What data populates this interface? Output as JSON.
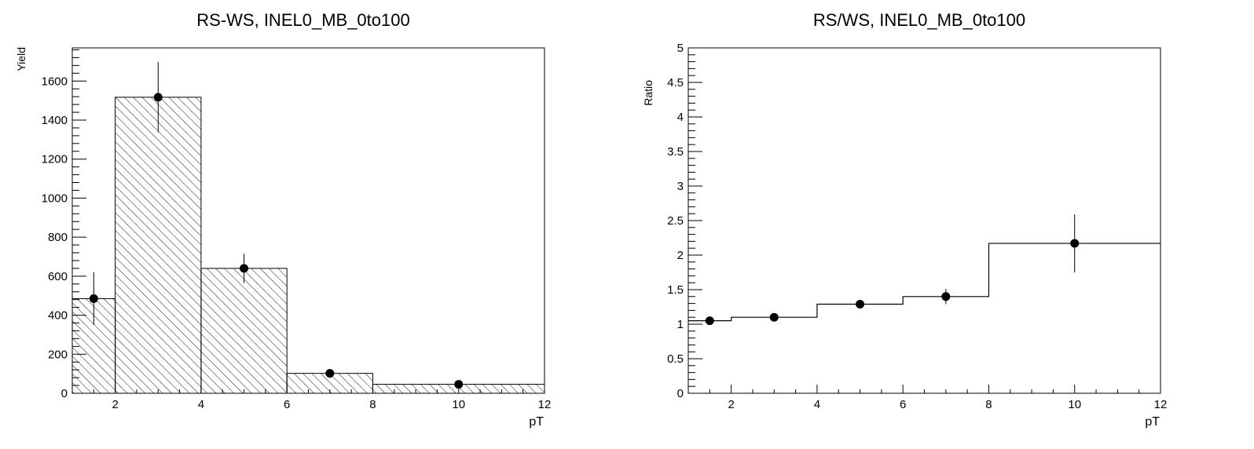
{
  "chart_data": [
    {
      "type": "bar",
      "title": "RS-WS, INEL0_MB_0to100",
      "xlabel": "pT",
      "ylabel": "Yield",
      "xlim": [
        1,
        12
      ],
      "ylim": [
        0,
        1770
      ],
      "x_ticks": [
        2,
        4,
        6,
        8,
        10,
        12
      ],
      "y_ticks": [
        0,
        200,
        400,
        600,
        800,
        1000,
        1200,
        1400,
        1600
      ],
      "bin_edges": [
        1,
        2,
        4,
        6,
        8,
        12
      ],
      "histogram_fill": "hatched",
      "points": [
        {
          "x": 1.5,
          "y": 485,
          "yerr": 135
        },
        {
          "x": 3,
          "y": 1517,
          "yerr": 180
        },
        {
          "x": 5,
          "y": 640,
          "yerr": 75
        },
        {
          "x": 7,
          "y": 102,
          "yerr": 12
        },
        {
          "x": 10,
          "y": 46,
          "yerr": 6
        }
      ],
      "grid": false
    },
    {
      "type": "line",
      "title": "RS/WS, INEL0_MB_0to100",
      "xlabel": "pT",
      "ylabel": "Ratio",
      "xlim": [
        1,
        12
      ],
      "ylim": [
        0,
        5
      ],
      "x_ticks": [
        2,
        4,
        6,
        8,
        10,
        12
      ],
      "y_ticks": [
        0,
        0.5,
        1,
        1.5,
        2,
        2.5,
        3,
        3.5,
        4,
        4.5,
        5
      ],
      "bin_edges": [
        1,
        2,
        4,
        6,
        8,
        12
      ],
      "points": [
        {
          "x": 1.5,
          "y": 1.05,
          "yerr": 0.03
        },
        {
          "x": 3,
          "y": 1.1,
          "yerr": 0.03
        },
        {
          "x": 5,
          "y": 1.29,
          "yerr": 0.03
        },
        {
          "x": 7,
          "y": 1.4,
          "yerr": 0.11
        },
        {
          "x": 10,
          "y": 2.17,
          "yerr": 0.42
        }
      ],
      "grid": false
    }
  ]
}
